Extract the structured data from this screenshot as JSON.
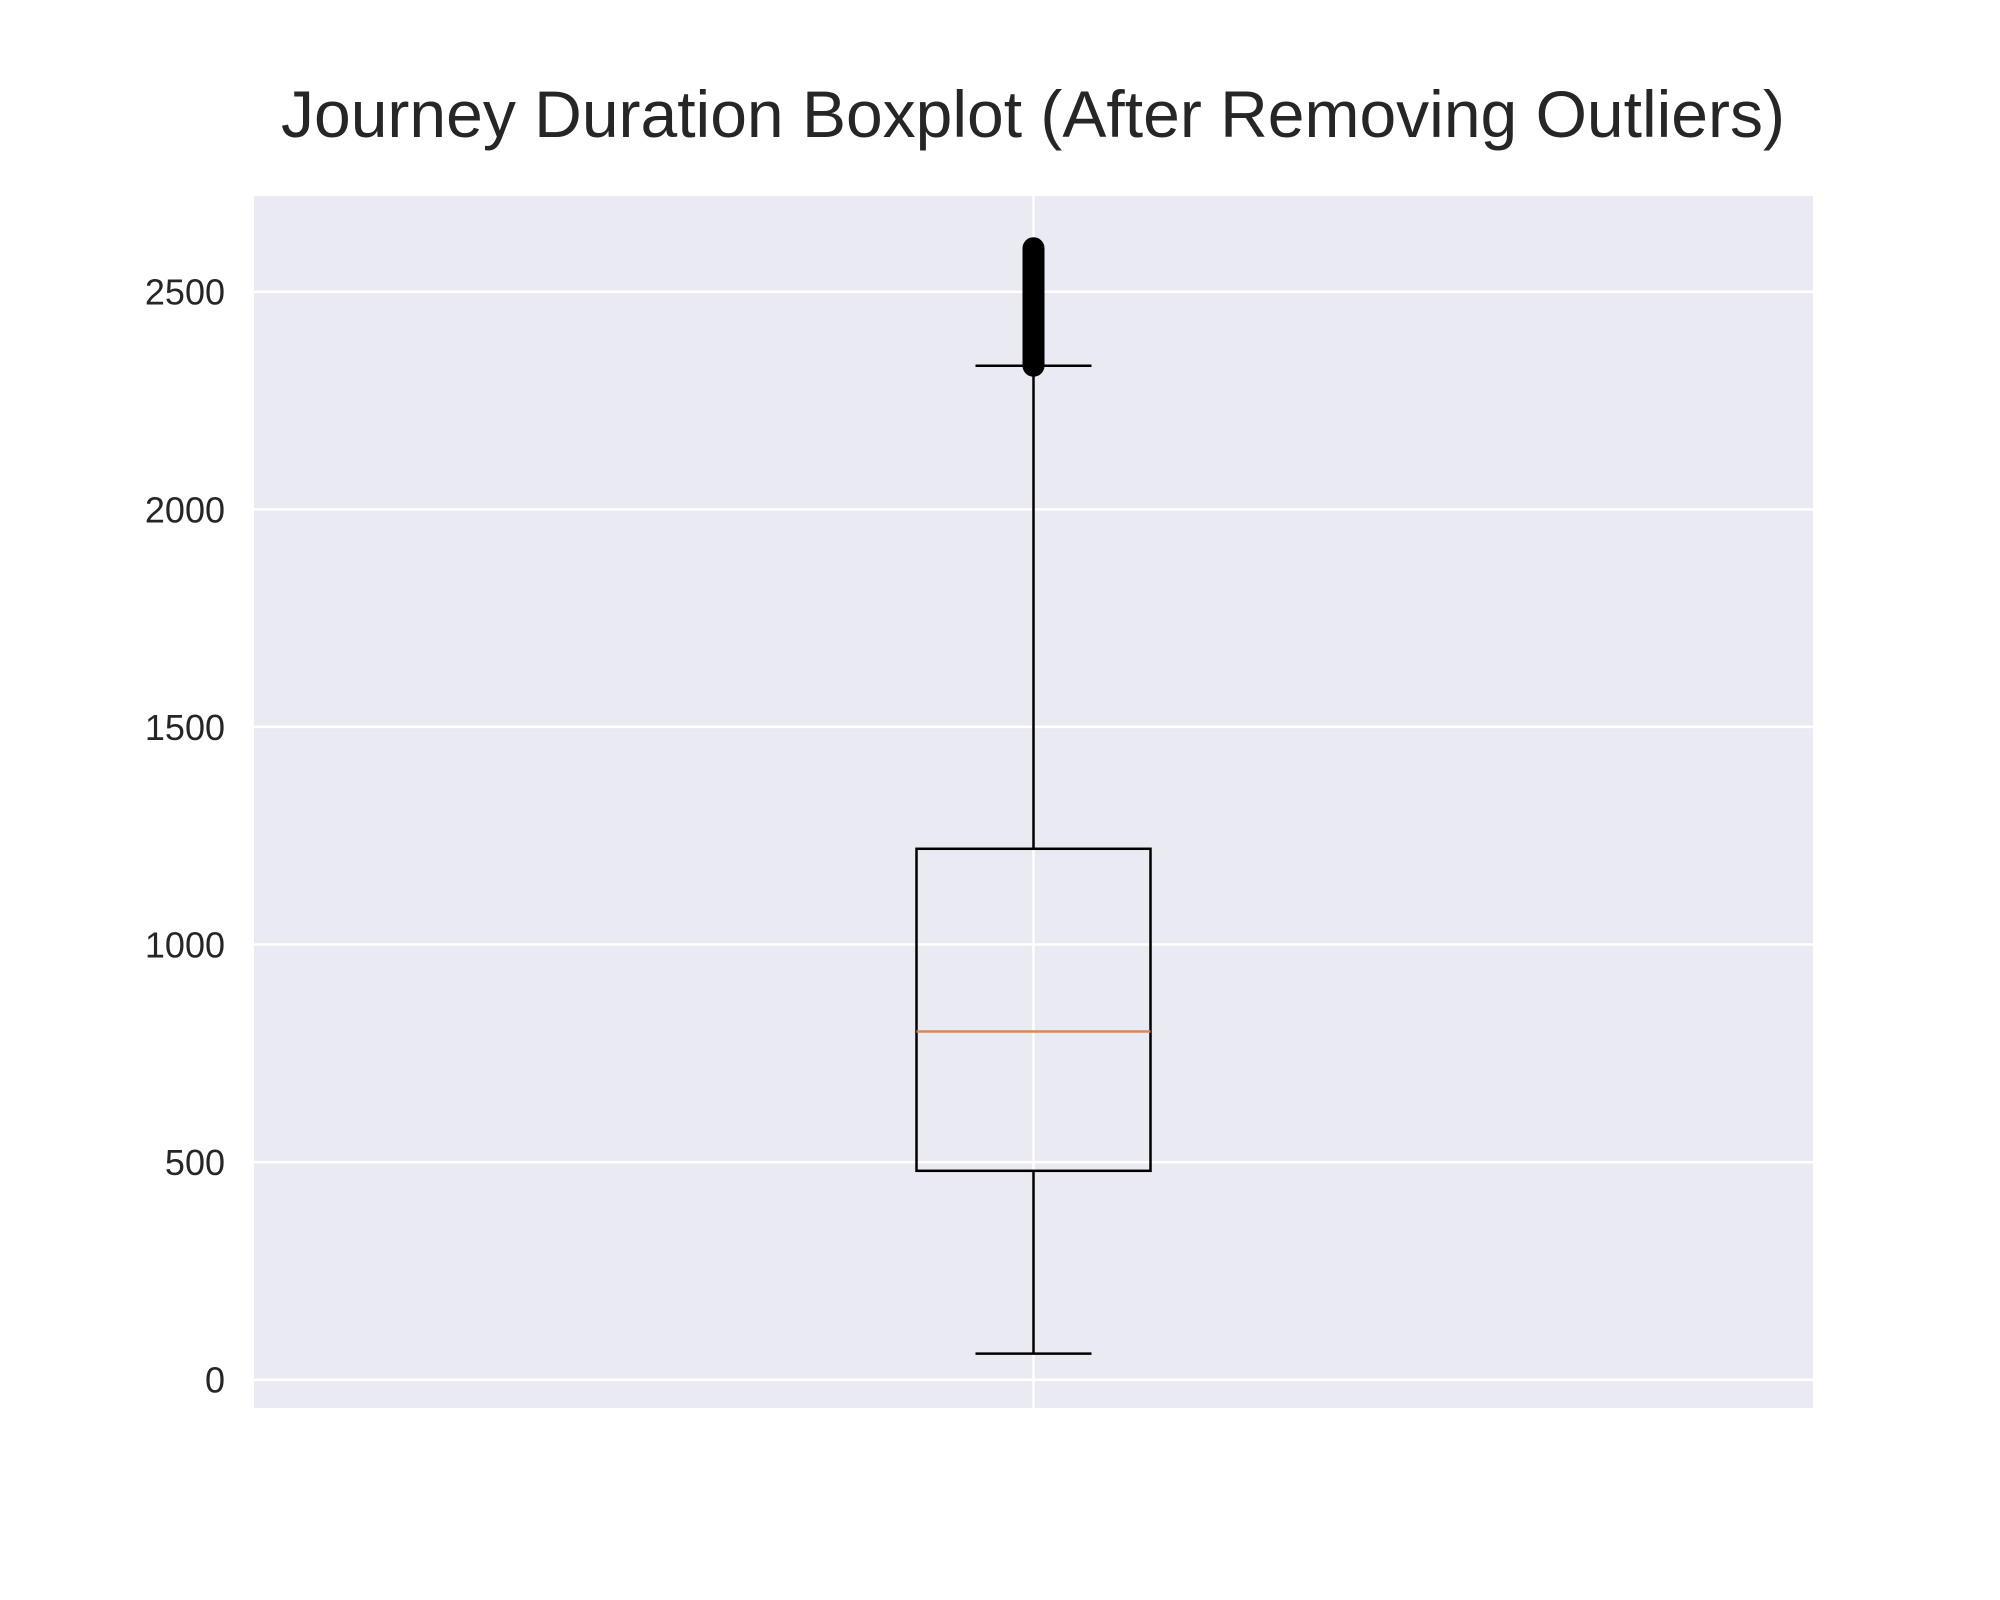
{
  "chart_data": {
    "type": "boxplot",
    "title": "Journey Duration Boxplot (After Removing Outliers)",
    "xlabel": "",
    "ylabel": "",
    "x_tick_labels": [
      ""
    ],
    "y_ticks": [
      0,
      500,
      1000,
      1500,
      2000,
      2500
    ],
    "ylim": [
      -65,
      2720
    ],
    "grid": true,
    "legend": "none",
    "colors": {
      "axes_background": "#EAEAF2",
      "grid": "#FFFFFF",
      "box": "#000000",
      "median": "#DD8452",
      "fliers": "#000000"
    },
    "box": {
      "whisker_low": 60,
      "q1": 480,
      "median": 800,
      "q3": 1220,
      "whisker_high": 2330,
      "fliers_min": 2330,
      "fliers_max": 2600
    }
  }
}
